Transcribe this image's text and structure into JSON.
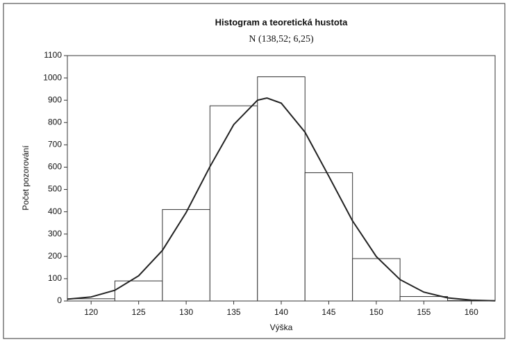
{
  "chart_data": {
    "type": "histogram",
    "title": "Histogram a teoretická hustota",
    "subtitle": "N (138,52; 6,25)",
    "x_label": "Výška",
    "y_label": "Počet pozorování",
    "bins": [
      117.5,
      122.5,
      127.5,
      132.5,
      137.5,
      142.5,
      147.5,
      152.5,
      157.5,
      162.5
    ],
    "counts": [
      10,
      90,
      410,
      875,
      1005,
      575,
      190,
      20,
      2
    ],
    "bar_color": "#ffffff",
    "curve": {
      "color": "#222222",
      "x": [
        117.5,
        120,
        122.5,
        125,
        127.5,
        130,
        132.5,
        135,
        137.5,
        138.5,
        140,
        142.5,
        145,
        147.5,
        150,
        152.5,
        155,
        157.5,
        160,
        162.5
      ],
      "values": [
        8,
        18,
        48,
        113,
        227,
        397,
        602,
        791,
        900,
        910,
        887,
        757,
        560,
        359,
        199,
        96,
        40,
        14,
        4,
        1
      ]
    },
    "xlim": [
      117.5,
      162.5
    ],
    "xticks": [
      120,
      125,
      130,
      135,
      140,
      145,
      150,
      155,
      160
    ],
    "ylim": [
      0,
      1100
    ],
    "yticks": [
      0,
      100,
      200,
      300,
      400,
      500,
      600,
      700,
      800,
      900,
      1000,
      1100
    ]
  }
}
